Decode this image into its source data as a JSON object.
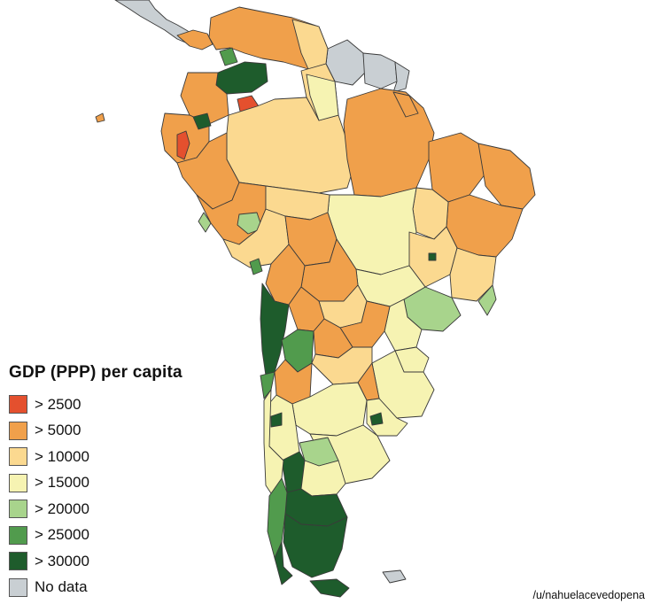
{
  "map": {
    "region": "South America",
    "colors": {
      "over_2500": "#e4502e",
      "over_5000": "#f0a04b",
      "over_10000": "#fbd990",
      "over_15000": "#f6f3b2",
      "over_20000": "#a8d48c",
      "over_25000": "#519b4d",
      "over_30000": "#1e5c2c",
      "no_data": "#c9cfd3"
    }
  },
  "legend": {
    "title": "GDP (PPP) per capita",
    "items": [
      {
        "label": "> 2500",
        "color": "#e4502e"
      },
      {
        "label": "> 5000",
        "color": "#f0a04b"
      },
      {
        "label": "> 10000",
        "color": "#fbd990"
      },
      {
        "label": "> 15000",
        "color": "#f6f3b2"
      },
      {
        "label": "> 20000",
        "color": "#a8d48c"
      },
      {
        "label": "> 25000",
        "color": "#519b4d"
      },
      {
        "label": "> 30000",
        "color": "#1e5c2c"
      },
      {
        "label": "No data",
        "color": "#c9cfd3"
      }
    ]
  },
  "credit": "/u/nahuelacevedopena"
}
